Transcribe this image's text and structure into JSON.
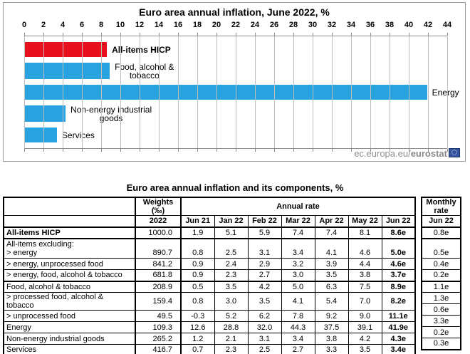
{
  "chart": {
    "title": "Euro area annual inflation, June 2022, %",
    "xmax": 44,
    "axis_ticks": [
      0,
      2,
      4,
      6,
      8,
      10,
      12,
      14,
      16,
      18,
      20,
      22,
      24,
      26,
      28,
      30,
      32,
      34,
      36,
      38,
      40,
      42,
      44
    ],
    "bars": [
      {
        "label": "All-items HICP",
        "lines": [
          "All-items HICP"
        ],
        "value": 8.6,
        "color": "#e8101c",
        "bold": true
      },
      {
        "label": "Food, alcohol & tobacco",
        "lines": [
          "Food, alcohol &",
          "tobacco"
        ],
        "value": 8.9,
        "color": "#29a3e0",
        "bold": false
      },
      {
        "label": "Energy",
        "lines": [
          "Energy"
        ],
        "value": 41.9,
        "color": "#29a3e0",
        "bold": false
      },
      {
        "label": "Non-energy industrial goods",
        "lines": [
          "Non-energy industrial",
          "goods"
        ],
        "value": 4.3,
        "color": "#29a3e0",
        "bold": false
      },
      {
        "label": "Services",
        "lines": [
          "Services"
        ],
        "value": 3.4,
        "color": "#29a3e0",
        "bold": false
      }
    ],
    "colors": {
      "highlight_red": "#e8101c",
      "bar_blue": "#29a3e0",
      "gridline": "#bdbdbd",
      "axis": "#8e8e8e"
    },
    "watermark": {
      "prefix": "ec.europa.eu/",
      "brand": "eurostat",
      "flag_icon": "eu-flag-icon"
    }
  },
  "table": {
    "title": "Euro area annual inflation and its components, %",
    "weights_header": {
      "line1": "Weights",
      "line2": "(‰)"
    },
    "weights_year": "2022",
    "annual_rate_header": "Annual rate",
    "monthly_header": {
      "line1": "Monthly",
      "line2": "rate"
    },
    "monthly_col": "Jun 22",
    "month_cols": [
      "Jun 21",
      "Jan 22",
      "Feb 22",
      "Mar 22",
      "Apr 22",
      "May 22",
      "Jun 22"
    ],
    "rows": [
      {
        "label_lines": [
          "All-items HICP"
        ],
        "bold": true,
        "thick": true,
        "tall": false,
        "weight": "1000.0",
        "values": [
          "1.9",
          "5.1",
          "5.9",
          "7.4",
          "7.4",
          "8.1",
          "8.6e"
        ],
        "monthly": "0.8e"
      },
      {
        "label_lines": [
          "All-items excluding:",
          "> energy"
        ],
        "bold": false,
        "thick": false,
        "tall": true,
        "weight": "890.7",
        "values": [
          "0.8",
          "2.5",
          "3.1",
          "3.4",
          "4.1",
          "4.6",
          "5.0e"
        ],
        "monthly": "0.5e"
      },
      {
        "label_lines": [
          "> energy, unprocessed food"
        ],
        "bold": false,
        "thick": false,
        "tall": false,
        "weight": "841.2",
        "values": [
          "0.9",
          "2.4",
          "2.9",
          "3.2",
          "3.9",
          "4.4",
          "4.6e"
        ],
        "monthly": "0.4e"
      },
      {
        "label_lines": [
          "> energy, food, alcohol & tobacco"
        ],
        "bold": false,
        "thick": true,
        "tall": false,
        "weight": "681.8",
        "values": [
          "0.9",
          "2.3",
          "2.7",
          "3.0",
          "3.5",
          "3.8",
          "3.7e"
        ],
        "monthly": "0.2e"
      },
      {
        "label_lines": [
          "Food, alcohol & tobacco"
        ],
        "bold": false,
        "thick": false,
        "tall": false,
        "weight": "208.9",
        "values": [
          "0.5",
          "3.5",
          "4.2",
          "5.0",
          "6.3",
          "7.5",
          "8.9e"
        ],
        "monthly": "1.1e"
      },
      {
        "label_lines": [
          "> processed food, alcohol & tobacco"
        ],
        "bold": false,
        "thick": false,
        "tall": false,
        "weight": "159.4",
        "values": [
          "0.8",
          "3.0",
          "3.5",
          "4.1",
          "5.4",
          "7.0",
          "8.2e"
        ],
        "monthly": "1.3e"
      },
      {
        "label_lines": [
          "> unprocessed food"
        ],
        "bold": false,
        "thick": false,
        "tall": false,
        "weight": "49.5",
        "values": [
          "-0.3",
          "5.2",
          "6.2",
          "7.8",
          "9.2",
          "9.0",
          "11.1e"
        ],
        "monthly": "0.6e"
      },
      {
        "label_lines": [
          "Energy"
        ],
        "bold": false,
        "thick": false,
        "tall": false,
        "weight": "109.3",
        "values": [
          "12.6",
          "28.8",
          "32.0",
          "44.3",
          "37.5",
          "39.1",
          "41.9e"
        ],
        "monthly": "3.3e"
      },
      {
        "label_lines": [
          "Non-energy industrial goods"
        ],
        "bold": false,
        "thick": false,
        "tall": false,
        "weight": "265.2",
        "values": [
          "1.2",
          "2.1",
          "3.1",
          "3.4",
          "3.8",
          "4.2",
          "4.3e"
        ],
        "monthly": "0.2e"
      },
      {
        "label_lines": [
          "Services"
        ],
        "bold": false,
        "thick": false,
        "tall": false,
        "weight": "416.7",
        "values": [
          "0.7",
          "2.3",
          "2.5",
          "2.7",
          "3.3",
          "3.5",
          "3.4e"
        ],
        "monthly": "0.3e"
      }
    ]
  },
  "chart_data": [
    {
      "type": "bar",
      "orientation": "horizontal",
      "title": "Euro area annual inflation, June 2022, %",
      "categories": [
        "All-items HICP",
        "Food, alcohol & tobacco",
        "Energy",
        "Non-energy industrial goods",
        "Services"
      ],
      "values": [
        8.6,
        8.9,
        41.9,
        4.3,
        3.4
      ],
      "xlabel": "",
      "ylabel": "",
      "xlim": [
        0,
        44
      ],
      "tick_step": 2,
      "grid": true,
      "legend_position": "none",
      "bar_colors": [
        "#e8101c",
        "#29a3e0",
        "#29a3e0",
        "#29a3e0",
        "#29a3e0"
      ],
      "annotation": "ec.europa.eu/eurostat"
    },
    {
      "type": "table",
      "title": "Euro area annual inflation and its components, %",
      "columns": [
        "",
        "Weights (‰) 2022",
        "Jun 21",
        "Jan 22",
        "Feb 22",
        "Mar 22",
        "Apr 22",
        "May 22",
        "Jun 22",
        "Monthly rate Jun 22"
      ],
      "rows": [
        [
          "All-items HICP",
          "1000.0",
          "1.9",
          "5.1",
          "5.9",
          "7.4",
          "7.4",
          "8.1",
          "8.6e",
          "0.8e"
        ],
        [
          "All-items excluding: > energy",
          "890.7",
          "0.8",
          "2.5",
          "3.1",
          "3.4",
          "4.1",
          "4.6",
          "5.0e",
          "0.5e"
        ],
        [
          "> energy, unprocessed food",
          "841.2",
          "0.9",
          "2.4",
          "2.9",
          "3.2",
          "3.9",
          "4.4",
          "4.6e",
          "0.4e"
        ],
        [
          "> energy, food, alcohol & tobacco",
          "681.8",
          "0.9",
          "2.3",
          "2.7",
          "3.0",
          "3.5",
          "3.8",
          "3.7e",
          "0.2e"
        ],
        [
          "Food, alcohol & tobacco",
          "208.9",
          "0.5",
          "3.5",
          "4.2",
          "5.0",
          "6.3",
          "7.5",
          "8.9e",
          "1.1e"
        ],
        [
          "> processed food, alcohol & tobacco",
          "159.4",
          "0.8",
          "3.0",
          "3.5",
          "4.1",
          "5.4",
          "7.0",
          "8.2e",
          "1.3e"
        ],
        [
          "> unprocessed food",
          "49.5",
          "-0.3",
          "5.2",
          "6.2",
          "7.8",
          "9.2",
          "9.0",
          "11.1e",
          "0.6e"
        ],
        [
          "Energy",
          "109.3",
          "12.6",
          "28.8",
          "32.0",
          "44.3",
          "37.5",
          "39.1",
          "41.9e",
          "3.3e"
        ],
        [
          "Non-energy industrial goods",
          "265.2",
          "1.2",
          "2.1",
          "3.1",
          "3.4",
          "3.8",
          "4.2",
          "4.3e",
          "0.2e"
        ],
        [
          "Services",
          "416.7",
          "0.7",
          "2.3",
          "2.5",
          "2.7",
          "3.3",
          "3.5",
          "3.4e",
          "0.3e"
        ]
      ]
    }
  ]
}
